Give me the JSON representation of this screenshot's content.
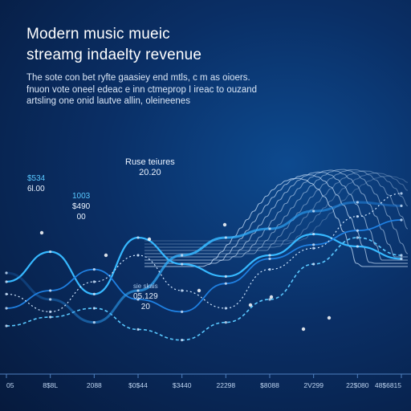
{
  "header": {
    "title_line1": "Modern music mueic",
    "title_line2": "streamg indaelty revenue",
    "desc_line1": "The sote con bet ryfte gaasiey end mtls, c m as oioers.",
    "desc_line2": "fnuon vote oneel edeac e inn ctmeprop I ireac to ouzand",
    "desc_line3": "artsling one onid lautve allin, oleineenes"
  },
  "annotations": [
    {
      "line1": "$534",
      "line2": "6l.00"
    },
    {
      "line1": "1003",
      "line2": "$490",
      "line3": "00"
    },
    {
      "line1": "Ruse teiures",
      "line2": "20.20"
    },
    {
      "line1": "sie skais",
      "line2": "05.129",
      "line3": "20"
    }
  ],
  "colors": {
    "background": "#0a2f66",
    "wave_light": "#cfe6ff",
    "wave_cyan": "#36b8ff",
    "wave_blue": "#1f7fe0",
    "highlight": "#59c8ff"
  },
  "chart_data": {
    "type": "line",
    "title": "Modern music mueic streamg indaelty revenue",
    "x": [
      "05",
      "8$8L",
      "2088",
      "$0$44",
      "$3440",
      "22298",
      "$8088",
      "2V299",
      "22$080",
      "48$6815"
    ],
    "series": [
      {
        "values": [
          45,
          62,
          38,
          70,
          55,
          48,
          60,
          72,
          65,
          58
        ]
      },
      {
        "values": [
          30,
          40,
          52,
          35,
          28,
          44,
          58,
          66,
          74,
          80
        ]
      },
      {
        "values": [
          20,
          25,
          30,
          18,
          12,
          22,
          35,
          55,
          70,
          60
        ]
      },
      {
        "values": [
          50,
          35,
          22,
          40,
          60,
          70,
          75,
          85,
          90,
          88
        ]
      },
      {
        "values": [
          38,
          28,
          45,
          60,
          40,
          30,
          52,
          64,
          82,
          95
        ]
      }
    ],
    "grid": false
  }
}
